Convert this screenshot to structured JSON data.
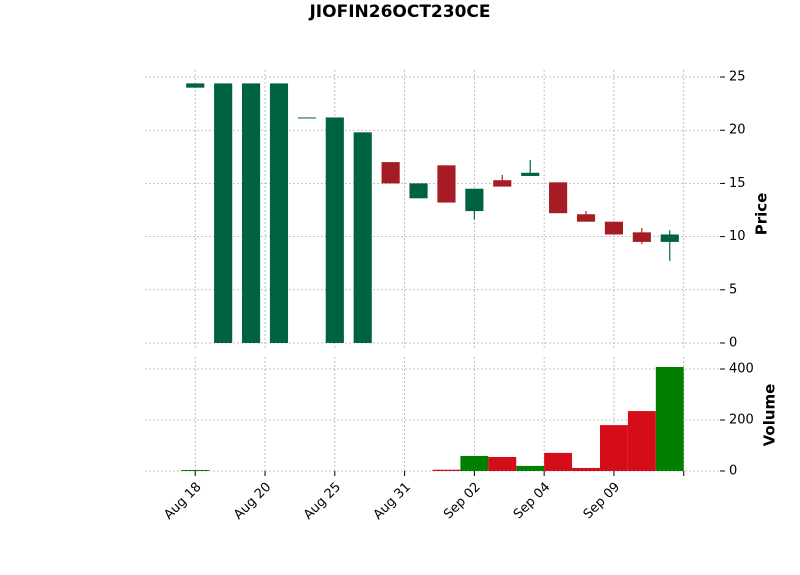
{
  "chart_data": {
    "type": "candlestick",
    "title": "JIOFIN26OCT230CE",
    "x": [
      0,
      1,
      2,
      3,
      4,
      5,
      6,
      7,
      8,
      9,
      10,
      11,
      12,
      13,
      14,
      15,
      16,
      17
    ],
    "open": [
      24.0,
      0,
      0,
      0,
      21.2,
      0,
      0,
      17.0,
      13.6,
      16.7,
      12.4,
      15.3,
      15.7,
      15.1,
      12.1,
      11.4,
      10.4,
      9.5
    ],
    "high": [
      24.4,
      24.4,
      24.4,
      24.4,
      21.2,
      21.2,
      19.8,
      17.0,
      15.0,
      16.7,
      14.5,
      15.8,
      17.2,
      15.1,
      12.4,
      11.4,
      10.8,
      10.6
    ],
    "low": [
      24.0,
      0,
      0,
      0,
      21.2,
      0,
      0,
      15.0,
      13.6,
      13.2,
      11.6,
      14.7,
      15.7,
      12.2,
      11.4,
      10.2,
      9.3,
      7.7
    ],
    "close": [
      24.4,
      24.4,
      24.4,
      24.4,
      21.2,
      21.2,
      19.8,
      15.0,
      15.0,
      13.2,
      14.5,
      14.7,
      16.0,
      12.2,
      11.4,
      10.2,
      9.5,
      10.2
    ],
    "volume": [
      4,
      0,
      0,
      0,
      0,
      0,
      0,
      0,
      0,
      5,
      59,
      55,
      20,
      71,
      12,
      180,
      235,
      408
    ],
    "up_color": "#006340",
    "down_color": "#a51c24",
    "volume_up_color": "#007f00",
    "volume_down_color": "#d50d18",
    "xlim": [
      -1.8,
      18.8
    ],
    "xticks": [
      {
        "value": 0,
        "label": "Aug 18"
      },
      {
        "value": 2.5,
        "label": "Aug 20"
      },
      {
        "value": 5,
        "label": "Aug 25"
      },
      {
        "value": 7.5,
        "label": "Aug 31"
      },
      {
        "value": 10,
        "label": "Sep 02"
      },
      {
        "value": 12.5,
        "label": "Sep 04"
      },
      {
        "value": 15,
        "label": "Sep 09"
      },
      {
        "value": 17.5,
        "label": null
      }
    ],
    "ylabel": "Price",
    "ylim": [
      -0.66,
      25.66
    ],
    "yticks": [
      0,
      5,
      10,
      15,
      20,
      25
    ],
    "volume_label": "Volume",
    "volume_ylim": [
      0,
      447
    ],
    "volume_yticks": [
      0,
      200,
      400
    ],
    "grid": true
  }
}
